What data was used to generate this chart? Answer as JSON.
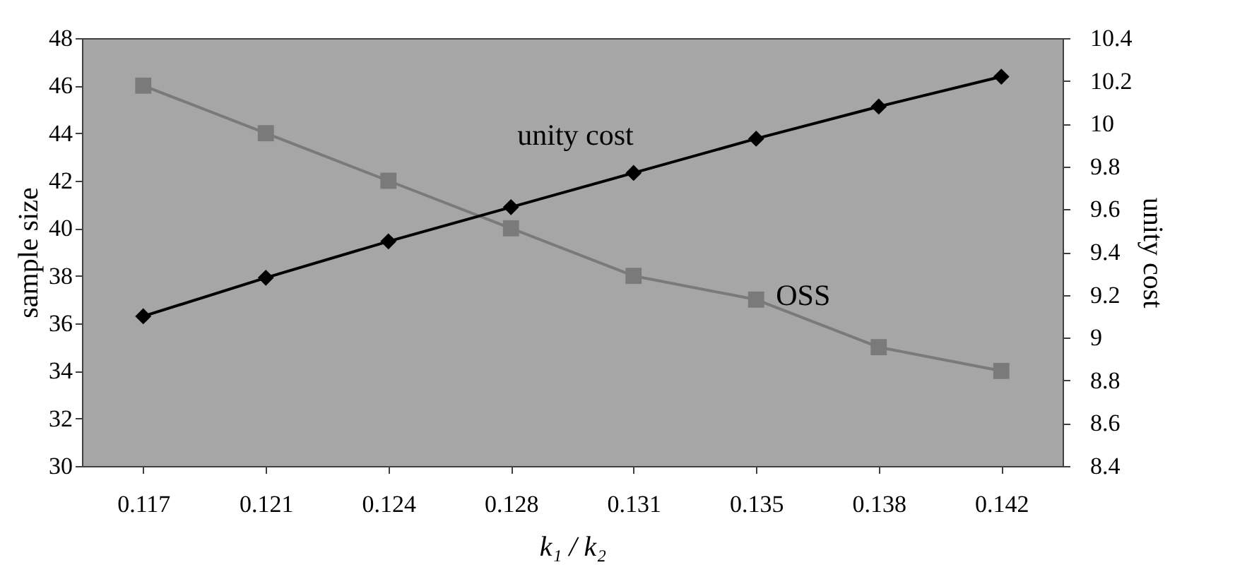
{
  "chart_data": {
    "type": "line",
    "xlabel": "k₁ / k₂",
    "ylabel": "sample size",
    "y2label": "unity cost",
    "categories": [
      "0.117",
      "0.121",
      "0.124",
      "0.128",
      "0.131",
      "0.135",
      "0.138",
      "0.142"
    ],
    "series": [
      {
        "name": "OSS",
        "color": "#7a7a7a",
        "marker": "square",
        "values": [
          46,
          44,
          42,
          40,
          38,
          37,
          35,
          34
        ]
      },
      {
        "name": "unity cost",
        "color": "#000000",
        "marker": "diamond",
        "axis": "y2",
        "values": [
          9.1,
          9.28,
          9.45,
          9.61,
          9.77,
          9.93,
          10.08,
          10.22
        ]
      }
    ],
    "ylim": [
      30,
      48
    ],
    "yticks": [
      30,
      32,
      34,
      36,
      38,
      40,
      42,
      44,
      46,
      48
    ],
    "y2lim": [
      8.4,
      10.4
    ],
    "y2ticks": [
      8.4,
      8.6,
      8.8,
      9,
      9.2,
      9.4,
      9.6,
      9.8,
      10,
      10.2,
      10.4
    ],
    "grid": false
  }
}
